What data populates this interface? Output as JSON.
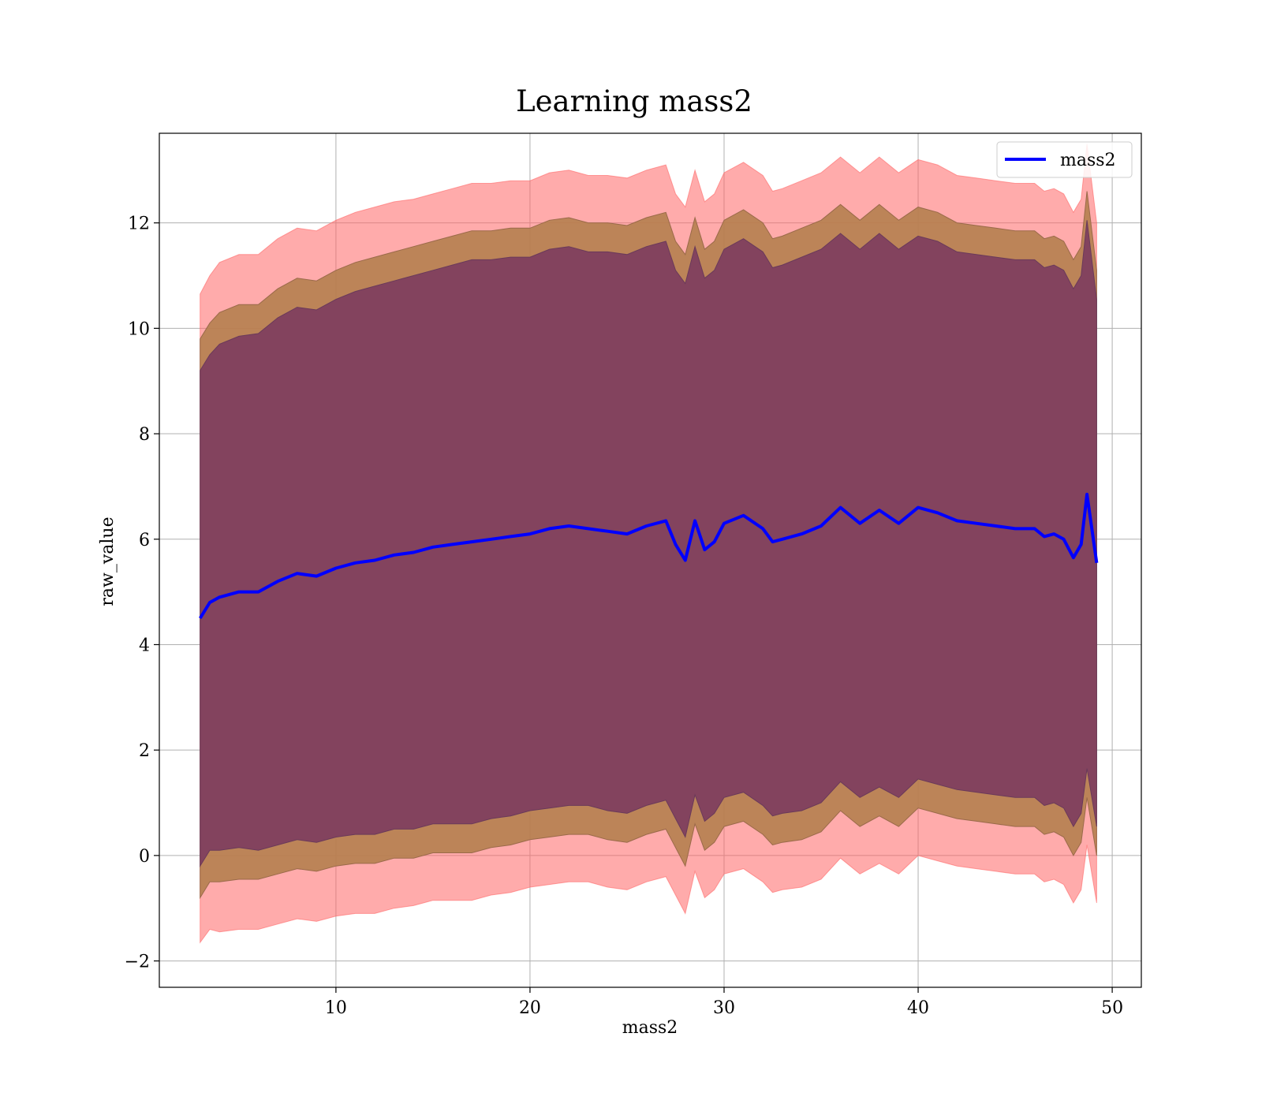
{
  "chart_data": {
    "type": "line",
    "title": "Learning mass2",
    "xlabel": "mass2",
    "ylabel": "raw_value",
    "xlim": [
      0.9,
      51.5
    ],
    "ylim": [
      -2.5,
      13.7
    ],
    "x_ticks": [
      10,
      20,
      30,
      40,
      50
    ],
    "x_tick_labels": [
      "10",
      "20",
      "30",
      "40",
      "50"
    ],
    "y_ticks": [
      -2,
      0,
      2,
      4,
      6,
      8,
      10,
      12
    ],
    "y_tick_labels": [
      "−2",
      "0",
      "2",
      "4",
      "6",
      "8",
      "10",
      "12"
    ],
    "grid": true,
    "legend": {
      "placement": "top-right",
      "entries": [
        "mass2"
      ]
    },
    "colors": {
      "line": "#0000ff",
      "band_1sigma": "#7f3f5f",
      "band_2sigma": "#b5804f",
      "band_3sigma": "#ff6666"
    },
    "series": [
      {
        "name": "mass2",
        "x": [
          3.0,
          3.5,
          4.0,
          5.0,
          6.0,
          7.0,
          8.0,
          9.0,
          10.0,
          11.0,
          12.0,
          13.0,
          14.0,
          15.0,
          16.0,
          17.0,
          18.0,
          19.0,
          20.0,
          21.0,
          22.0,
          23.0,
          24.0,
          25.0,
          26.0,
          27.0,
          27.5,
          28.0,
          28.5,
          29.0,
          29.5,
          30.0,
          31.0,
          32.0,
          32.5,
          33.0,
          34.0,
          35.0,
          36.0,
          37.0,
          38.0,
          39.0,
          40.0,
          41.0,
          42.0,
          43.0,
          44.0,
          45.0,
          46.0,
          46.5,
          47.0,
          47.5,
          48.0,
          48.4,
          48.7,
          49.2
        ],
        "y": [
          4.5,
          4.8,
          4.9,
          5.0,
          5.0,
          5.2,
          5.35,
          5.3,
          5.45,
          5.55,
          5.6,
          5.7,
          5.75,
          5.85,
          5.9,
          5.95,
          6.0,
          6.05,
          6.1,
          6.2,
          6.25,
          6.2,
          6.15,
          6.1,
          6.25,
          6.35,
          5.9,
          5.6,
          6.35,
          5.8,
          5.95,
          6.3,
          6.45,
          6.2,
          5.95,
          6.0,
          6.1,
          6.25,
          6.6,
          6.3,
          6.55,
          6.3,
          6.6,
          6.5,
          6.35,
          6.3,
          6.25,
          6.2,
          6.2,
          6.05,
          6.1,
          6.0,
          5.65,
          5.9,
          6.85,
          5.55
        ],
        "band_1sigma": [
          4.7,
          4.7,
          4.8,
          4.85,
          4.9,
          5.0,
          5.05,
          5.05,
          5.1,
          5.15,
          5.2,
          5.2,
          5.25,
          5.25,
          5.3,
          5.35,
          5.3,
          5.3,
          5.25,
          5.3,
          5.3,
          5.25,
          5.3,
          5.3,
          5.3,
          5.3,
          5.2,
          5.25,
          5.2,
          5.15,
          5.15,
          5.2,
          5.25,
          5.25,
          5.2,
          5.2,
          5.25,
          5.25,
          5.2,
          5.2,
          5.25,
          5.2,
          5.15,
          5.15,
          5.1,
          5.1,
          5.1,
          5.1,
          5.1,
          5.1,
          5.1,
          5.1,
          5.1,
          5.1,
          5.2,
          5.0
        ],
        "band_2sigma_extra": [
          0.6,
          0.6,
          0.6,
          0.6,
          0.55,
          0.55,
          0.55,
          0.55,
          0.55,
          0.55,
          0.55,
          0.55,
          0.55,
          0.55,
          0.55,
          0.55,
          0.55,
          0.55,
          0.55,
          0.55,
          0.55,
          0.55,
          0.55,
          0.55,
          0.55,
          0.55,
          0.55,
          0.55,
          0.55,
          0.55,
          0.55,
          0.55,
          0.55,
          0.55,
          0.55,
          0.55,
          0.55,
          0.55,
          0.55,
          0.55,
          0.55,
          0.55,
          0.55,
          0.55,
          0.55,
          0.55,
          0.55,
          0.55,
          0.55,
          0.55,
          0.55,
          0.55,
          0.55,
          0.55,
          0.55,
          0.55
        ],
        "band_3sigma_extra": [
          0.85,
          0.9,
          0.95,
          0.95,
          0.95,
          0.95,
          0.95,
          0.95,
          0.95,
          0.95,
          0.95,
          0.95,
          0.9,
          0.9,
          0.9,
          0.9,
          0.9,
          0.9,
          0.9,
          0.9,
          0.9,
          0.9,
          0.9,
          0.9,
          0.9,
          0.9,
          0.9,
          0.9,
          0.9,
          0.9,
          0.9,
          0.9,
          0.9,
          0.9,
          0.9,
          0.9,
          0.9,
          0.9,
          0.9,
          0.9,
          0.9,
          0.9,
          0.9,
          0.9,
          0.9,
          0.9,
          0.9,
          0.9,
          0.9,
          0.9,
          0.9,
          0.9,
          0.9,
          0.9,
          0.9,
          0.9
        ]
      }
    ]
  }
}
